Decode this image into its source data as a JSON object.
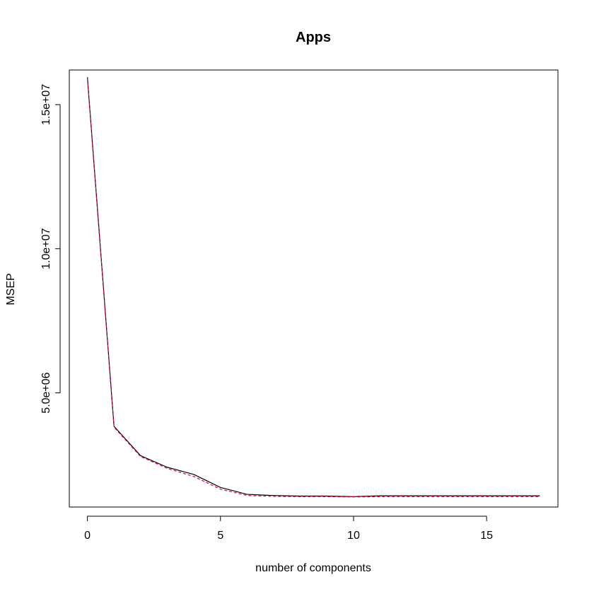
{
  "chart_data": {
    "type": "line",
    "title": "Apps",
    "xlabel": "number of components",
    "ylabel": "MSEP",
    "xlim": [
      -0.68,
      17.68
    ],
    "ylim": [
      1040000,
      16200000
    ],
    "xticks": [
      0,
      5,
      10,
      15
    ],
    "xtick_labels": [
      "0",
      "5",
      "10",
      "15"
    ],
    "yticks": [
      5000000,
      10000000,
      15000000
    ],
    "ytick_labels": [
      "5.0e+06",
      "1.0e+07",
      "1.5e+07"
    ],
    "grid": false,
    "legend": "none",
    "x": [
      0,
      1,
      2,
      3,
      4,
      5,
      6,
      7,
      8,
      9,
      10,
      11,
      12,
      13,
      14,
      15,
      16,
      17
    ],
    "series": [
      {
        "color": "#000000",
        "dash": "solid",
        "values": [
          15950000,
          3840000,
          2820000,
          2420000,
          2170000,
          1720000,
          1480000,
          1440000,
          1420000,
          1420000,
          1400000,
          1430000,
          1430000,
          1430000,
          1430000,
          1430000,
          1430000,
          1430000
        ]
      },
      {
        "color": "#dd0033",
        "dash": "dashed",
        "values": [
          15920000,
          3810000,
          2790000,
          2380000,
          2100000,
          1660000,
          1440000,
          1410000,
          1400000,
          1400000,
          1390000,
          1400000,
          1400000,
          1400000,
          1400000,
          1400000,
          1400000,
          1400000
        ]
      }
    ]
  }
}
